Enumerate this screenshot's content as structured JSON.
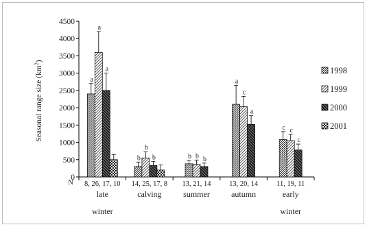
{
  "chart_data": {
    "type": "bar",
    "title": "",
    "xlabel": "",
    "ylabel": "Seasonal range size (km",
    "ylabel_sup": "2",
    "ylabel_close": ")",
    "ylim": [
      0,
      4500
    ],
    "yticks": [
      0,
      500,
      1000,
      1500,
      2000,
      2500,
      3000,
      3500,
      4000,
      4500
    ],
    "grid": false,
    "legend_position": "right",
    "n_label": "N",
    "categories": [
      {
        "line1": "late",
        "line2": "winter",
        "n": "8, 26, 17, 10",
        "series_present": [
          "1998",
          "1999",
          "2000",
          "2001"
        ]
      },
      {
        "line1": "calving",
        "line2": "",
        "n": "14, 25, 17, 8",
        "series_present": [
          "1998",
          "1999",
          "2000",
          "2001"
        ]
      },
      {
        "line1": "summer",
        "line2": "",
        "n": "13, 21, 14",
        "series_present": [
          "1998",
          "1999",
          "2000"
        ]
      },
      {
        "line1": "autumn",
        "line2": "",
        "n": "13, 20, 14",
        "series_present": [
          "1998",
          "1999",
          "2000"
        ]
      },
      {
        "line1": "early",
        "line2": "winter",
        "n": "11, 19, 11",
        "series_present": [
          "1998",
          "1999",
          "2000"
        ]
      }
    ],
    "series": [
      {
        "name": "1998",
        "pattern": "dots",
        "values": [
          2400,
          300,
          380,
          2100,
          1080
        ],
        "errors": [
          300,
          130,
          100,
          550,
          230
        ],
        "labels": [
          "a",
          "b",
          "b",
          "a",
          "c"
        ]
      },
      {
        "name": "1999",
        "pattern": "diag",
        "values": [
          3600,
          550,
          360,
          2030,
          1050
        ],
        "errors": [
          600,
          180,
          130,
          300,
          180
        ],
        "labels": [
          "a",
          "b",
          "b",
          "c",
          "c"
        ]
      },
      {
        "name": "2000",
        "pattern": "dark",
        "values": [
          2500,
          330,
          300,
          1520,
          780
        ],
        "errors": [
          500,
          120,
          100,
          250,
          170
        ],
        "labels": [
          "a",
          "b",
          "b",
          "a",
          "c"
        ]
      },
      {
        "name": "2001",
        "pattern": "check",
        "values": [
          500,
          200,
          null,
          null,
          null
        ],
        "errors": [
          150,
          150,
          null,
          null,
          null
        ],
        "labels": [
          "",
          "",
          "",
          "",
          ""
        ]
      }
    ]
  }
}
